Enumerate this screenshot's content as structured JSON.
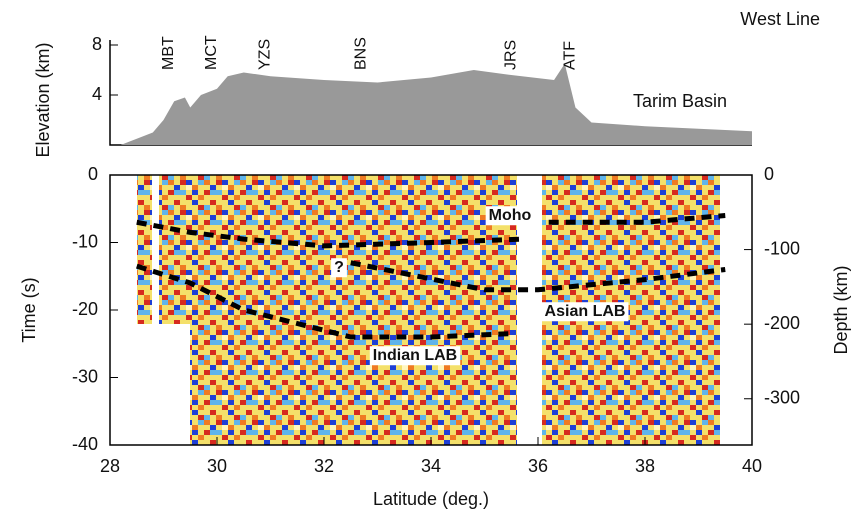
{
  "chart_data": [
    {
      "type": "area",
      "title": "West Line",
      "ylabel": "Elevation (km)",
      "color": "#999999",
      "x": [
        28.2,
        28.5,
        28.8,
        29.0,
        29.2,
        29.4,
        29.5,
        29.7,
        30.0,
        30.2,
        30.5,
        31.0,
        32.0,
        33.0,
        34.0,
        34.8,
        35.5,
        36.3,
        36.5,
        36.7,
        37.0,
        38.0,
        39.0,
        40.0
      ],
      "values": [
        0,
        0.5,
        1,
        2,
        3.5,
        3.8,
        3,
        4,
        4.5,
        5.5,
        5.8,
        5.5,
        5.2,
        5,
        5.4,
        6,
        5.6,
        5.2,
        6.5,
        3,
        1.8,
        1.5,
        1.3,
        1.1
      ],
      "xlim": [
        28,
        40
      ],
      "ylim": [
        0,
        8.4
      ],
      "yticks": [
        4,
        8
      ],
      "annotations": [
        {
          "text": "MBT",
          "x": 29.1
        },
        {
          "text": "MCT",
          "x": 29.9
        },
        {
          "text": "YZS",
          "x": 30.9
        },
        {
          "text": "BNS",
          "x": 32.7
        },
        {
          "text": "JRS",
          "x": 35.5
        },
        {
          "text": "ATF",
          "x": 36.6
        }
      ],
      "region_label": "Tarim Basin"
    },
    {
      "type": "line",
      "xlabel": "Latitude (deg.)",
      "ylabel": "Time (s)",
      "y2label": "Depth (km)",
      "xlim": [
        28,
        40
      ],
      "xticks": [
        28,
        30,
        32,
        34,
        36,
        38,
        40
      ],
      "ylim": [
        -40,
        0
      ],
      "yticks": [
        0,
        -10,
        -20,
        -30,
        -40
      ],
      "y2lim": [
        -362,
        0
      ],
      "y2ticks": [
        0,
        -100,
        -200,
        -300
      ],
      "series": [
        {
          "name": "Moho",
          "color": "#000000",
          "x": [
            28.5,
            29.5,
            30.5,
            32,
            34,
            35.7,
            null,
            36.2,
            38,
            39.5
          ],
          "values": [
            -7,
            -8.5,
            -9.5,
            -10.5,
            -10,
            -9.5,
            null,
            -7,
            -7,
            -6
          ]
        },
        {
          "name": "Asian LAB",
          "color": "#000000",
          "x": [
            32.5,
            35,
            36,
            38,
            39.5
          ],
          "values": [
            -13,
            -17,
            -17,
            -15.5,
            -14
          ]
        },
        {
          "name": "Indian LAB",
          "color": "#000000",
          "x": [
            28.5,
            29.5,
            30.5,
            31.5,
            32.5,
            34,
            35.5
          ],
          "values": [
            -13.5,
            -16,
            -20,
            -22,
            -24,
            -24,
            -23.5
          ]
        }
      ],
      "question_mark": "?"
    }
  ]
}
